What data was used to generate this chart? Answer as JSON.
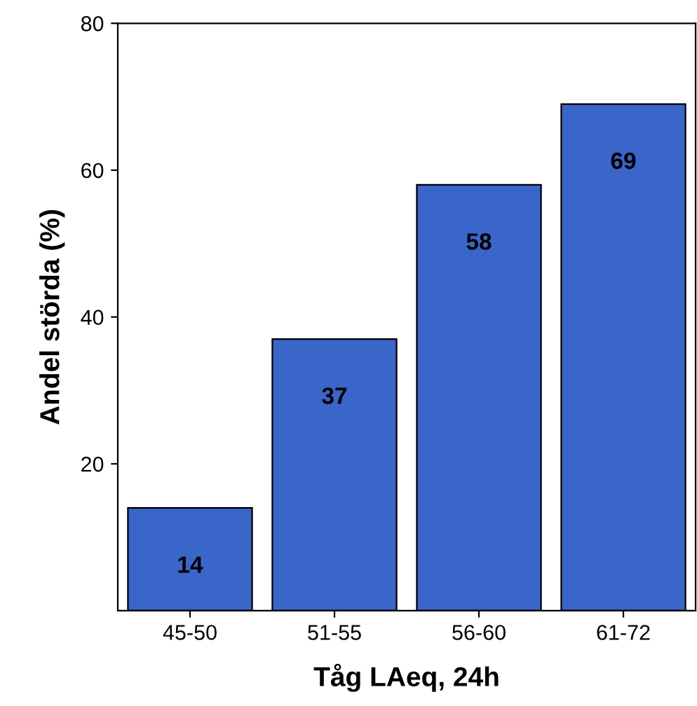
{
  "chart_data": {
    "type": "bar",
    "xlabel": "Tåg LAeq, 24h",
    "ylabel": "Andel störda (%)",
    "categories": [
      "45-50",
      "51-55",
      "56-60",
      "61-72"
    ],
    "values": [
      14,
      37,
      58,
      69
    ],
    "color": "#3a65c9",
    "ylim": [
      0,
      80
    ],
    "yticks": [
      20,
      40,
      60,
      80
    ],
    "grid": false,
    "data_labels": true
  }
}
